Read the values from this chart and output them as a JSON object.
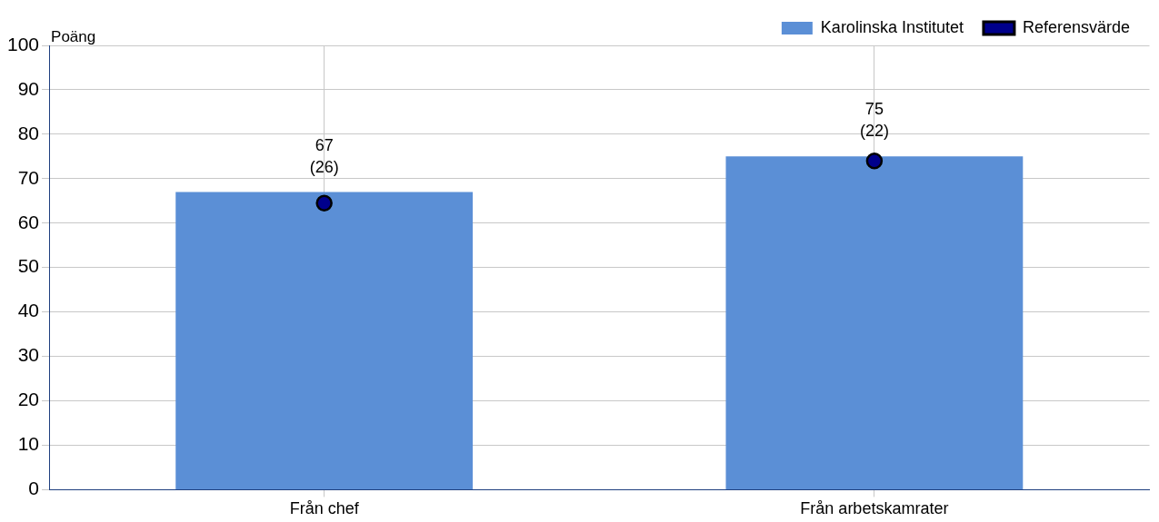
{
  "chart_data": {
    "type": "bar",
    "ylabel": "Poäng",
    "categories": [
      "Från chef",
      "Från arbetskamrater"
    ],
    "series": [
      {
        "name": "Karolinska Institutet",
        "color": "#5b8fd6",
        "values": [
          67,
          75
        ],
        "value_labels": [
          "67\n(26)",
          "75\n(22)"
        ]
      },
      {
        "name": "Referensvärde",
        "type": "scatter",
        "x": [
          "Från chef",
          "Från arbetskamrater"
        ],
        "color": "#00008b",
        "values": [
          64.5,
          74
        ],
        "marker": "circle"
      }
    ],
    "ylim": [
      0,
      100
    ],
    "yticks": [
      0,
      10,
      20,
      30,
      40,
      50,
      60,
      70,
      80,
      90,
      100
    ],
    "grid": true,
    "legend": "top right"
  }
}
